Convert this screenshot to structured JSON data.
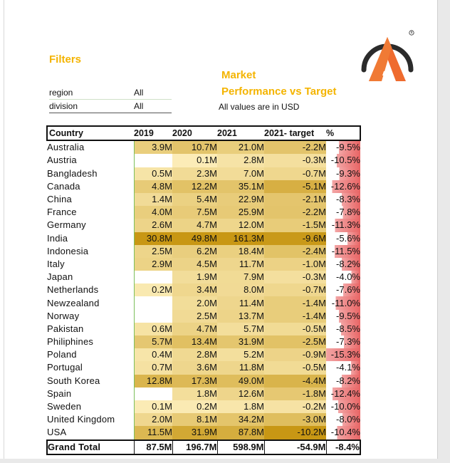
{
  "filters": {
    "title": "Filters",
    "rows": [
      {
        "label": "region",
        "value": "All"
      },
      {
        "label": "division",
        "value": "All"
      }
    ]
  },
  "report": {
    "title_line1": "Market",
    "title_line2": "Performance vs Target",
    "subtitle": "All values are in USD"
  },
  "colors": {
    "accent": "#f4b400",
    "logo_orange": "#ef6b2e",
    "logo_dark": "#2b2b2b",
    "negative_red": "#e23a3a"
  },
  "table": {
    "headers": [
      "Country",
      "2019",
      "2020",
      "2021",
      "2021- target",
      "%"
    ],
    "rows": [
      {
        "country": "Australia",
        "v2019": "3.9M",
        "v2020": "10.7M",
        "v2021": "21.0M",
        "target": "-2.2M",
        "pct": "-9.5%",
        "s2019": 3.9,
        "s2020": 10.7,
        "s2021": 21.0,
        "starget": -2.2,
        "spct": -9.5
      },
      {
        "country": "Austria",
        "v2019": "",
        "v2020": "0.1M",
        "v2021": "2.8M",
        "target": "-0.3M",
        "pct": "-10.5%",
        "s2019": null,
        "s2020": 0.1,
        "s2021": 2.8,
        "starget": -0.3,
        "spct": -10.5
      },
      {
        "country": "Bangladesh",
        "v2019": "0.5M",
        "v2020": "2.3M",
        "v2021": "7.0M",
        "target": "-0.7M",
        "pct": "-9.3%",
        "s2019": 0.5,
        "s2020": 2.3,
        "s2021": 7.0,
        "starget": -0.7,
        "spct": -9.3
      },
      {
        "country": "Canada",
        "v2019": "4.8M",
        "v2020": "12.2M",
        "v2021": "35.1M",
        "target": "-5.1M",
        "pct": "-12.6%",
        "s2019": 4.8,
        "s2020": 12.2,
        "s2021": 35.1,
        "starget": -5.1,
        "spct": -12.6
      },
      {
        "country": "China",
        "v2019": "1.4M",
        "v2020": "5.4M",
        "v2021": "22.9M",
        "target": "-2.1M",
        "pct": "-8.3%",
        "s2019": 1.4,
        "s2020": 5.4,
        "s2021": 22.9,
        "starget": -2.1,
        "spct": -8.3
      },
      {
        "country": "France",
        "v2019": "4.0M",
        "v2020": "7.5M",
        "v2021": "25.9M",
        "target": "-2.2M",
        "pct": "-7.8%",
        "s2019": 4.0,
        "s2020": 7.5,
        "s2021": 25.9,
        "starget": -2.2,
        "spct": -7.8
      },
      {
        "country": "Germany",
        "v2019": "2.6M",
        "v2020": "4.7M",
        "v2021": "12.0M",
        "target": "-1.5M",
        "pct": "-11.3%",
        "s2019": 2.6,
        "s2020": 4.7,
        "s2021": 12.0,
        "starget": -1.5,
        "spct": -11.3
      },
      {
        "country": "India",
        "v2019": "30.8M",
        "v2020": "49.8M",
        "v2021": "161.3M",
        "target": "-9.6M",
        "pct": "-5.6%",
        "s2019": 30.8,
        "s2020": 49.8,
        "s2021": 161.3,
        "starget": -9.6,
        "spct": -5.6
      },
      {
        "country": "Indonesia",
        "v2019": "2.5M",
        "v2020": "6.2M",
        "v2021": "18.4M",
        "target": "-2.4M",
        "pct": "-11.5%",
        "s2019": 2.5,
        "s2020": 6.2,
        "s2021": 18.4,
        "starget": -2.4,
        "spct": -11.5
      },
      {
        "country": "Italy",
        "v2019": "2.9M",
        "v2020": "4.5M",
        "v2021": "11.7M",
        "target": "-1.0M",
        "pct": "-8.2%",
        "s2019": 2.9,
        "s2020": 4.5,
        "s2021": 11.7,
        "starget": -1.0,
        "spct": -8.2
      },
      {
        "country": "Japan",
        "v2019": "",
        "v2020": "1.9M",
        "v2021": "7.9M",
        "target": "-0.3M",
        "pct": "-4.0%",
        "s2019": null,
        "s2020": 1.9,
        "s2021": 7.9,
        "starget": -0.3,
        "spct": -4.0
      },
      {
        "country": "Netherlands",
        "v2019": "0.2M",
        "v2020": "3.4M",
        "v2021": "8.0M",
        "target": "-0.7M",
        "pct": "-7.6%",
        "s2019": 0.2,
        "s2020": 3.4,
        "s2021": 8.0,
        "starget": -0.7,
        "spct": -7.6
      },
      {
        "country": "Newzealand",
        "v2019": "",
        "v2020": "2.0M",
        "v2021": "11.4M",
        "target": "-1.4M",
        "pct": "-11.0%",
        "s2019": null,
        "s2020": 2.0,
        "s2021": 11.4,
        "starget": -1.4,
        "spct": -11.0
      },
      {
        "country": "Norway",
        "v2019": "",
        "v2020": "2.5M",
        "v2021": "13.7M",
        "target": "-1.4M",
        "pct": "-9.5%",
        "s2019": null,
        "s2020": 2.5,
        "s2021": 13.7,
        "starget": -1.4,
        "spct": -9.5
      },
      {
        "country": "Pakistan",
        "v2019": "0.6M",
        "v2020": "4.7M",
        "v2021": "5.7M",
        "target": "-0.5M",
        "pct": "-8.5%",
        "s2019": 0.6,
        "s2020": 4.7,
        "s2021": 5.7,
        "starget": -0.5,
        "spct": -8.5
      },
      {
        "country": "Philiphines",
        "v2019": "5.7M",
        "v2020": "13.4M",
        "v2021": "31.9M",
        "target": "-2.5M",
        "pct": "-7.3%",
        "s2019": 5.7,
        "s2020": 13.4,
        "s2021": 31.9,
        "starget": -2.5,
        "spct": -7.3
      },
      {
        "country": "Poland",
        "v2019": "0.4M",
        "v2020": "2.8M",
        "v2021": "5.2M",
        "target": "-0.9M",
        "pct": "-15.3%",
        "s2019": 0.4,
        "s2020": 2.8,
        "s2021": 5.2,
        "starget": -0.9,
        "spct": -15.3
      },
      {
        "country": "Portugal",
        "v2019": "0.7M",
        "v2020": "3.6M",
        "v2021": "11.8M",
        "target": "-0.5M",
        "pct": "-4.1%",
        "s2019": 0.7,
        "s2020": 3.6,
        "s2021": 11.8,
        "starget": -0.5,
        "spct": -4.1
      },
      {
        "country": "South Korea",
        "v2019": "12.8M",
        "v2020": "17.3M",
        "v2021": "49.0M",
        "target": "-4.4M",
        "pct": "-8.2%",
        "s2019": 12.8,
        "s2020": 17.3,
        "s2021": 49.0,
        "starget": -4.4,
        "spct": -8.2
      },
      {
        "country": "Spain",
        "v2019": "",
        "v2020": "1.8M",
        "v2021": "12.6M",
        "target": "-1.8M",
        "pct": "-12.4%",
        "s2019": null,
        "s2020": 1.8,
        "s2021": 12.6,
        "starget": -1.8,
        "spct": -12.4
      },
      {
        "country": "Sweden",
        "v2019": "0.1M",
        "v2020": "0.2M",
        "v2021": "1.8M",
        "target": "-0.2M",
        "pct": "-10.0%",
        "s2019": 0.1,
        "s2020": 0.2,
        "s2021": 1.8,
        "starget": -0.2,
        "spct": -10.0
      },
      {
        "country": "United Kingdom",
        "v2019": "2.0M",
        "v2020": "8.1M",
        "v2021": "34.2M",
        "target": "-3.0M",
        "pct": "-8.0%",
        "s2019": 2.0,
        "s2020": 8.1,
        "s2021": 34.2,
        "starget": -3.0,
        "spct": -8.0
      },
      {
        "country": "USA",
        "v2019": "11.5M",
        "v2020": "31.9M",
        "v2021": "87.8M",
        "target": "-10.2M",
        "pct": "-10.4%",
        "s2019": 11.5,
        "s2020": 31.9,
        "s2021": 87.8,
        "starget": -10.2,
        "spct": -10.4
      }
    ],
    "total": {
      "label": "Grand Total",
      "v2019": "87.5M",
      "v2020": "196.7M",
      "v2021": "598.9M",
      "target": "-54.9M",
      "pct": "-8.4%"
    }
  }
}
